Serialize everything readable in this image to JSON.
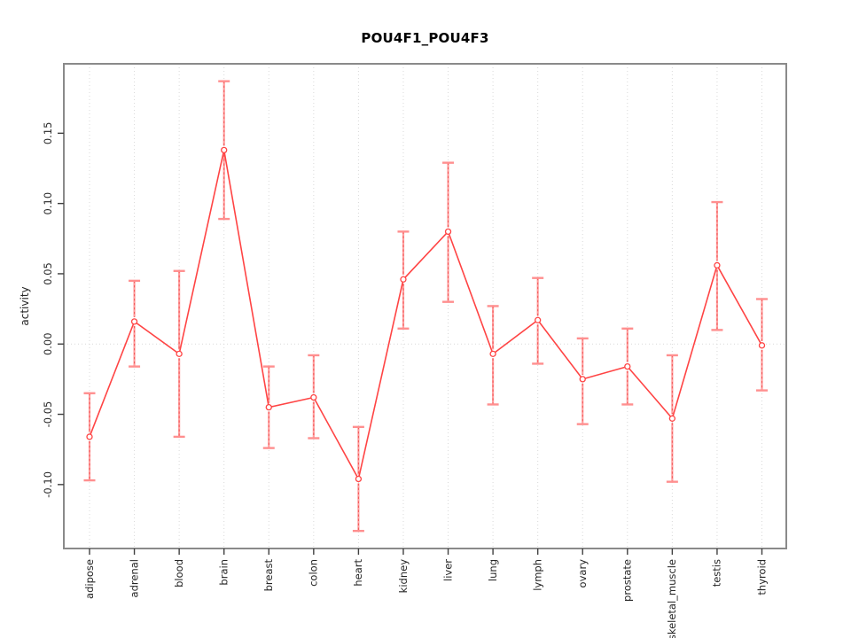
{
  "chart_data": {
    "type": "line",
    "title": "POU4F1_POU4F3",
    "xlabel": "",
    "ylabel": "activity",
    "categories": [
      "adipose",
      "adrenal",
      "blood",
      "brain",
      "breast",
      "colon",
      "heart",
      "kidney",
      "liver",
      "lung",
      "lymph",
      "ovary",
      "prostate",
      "skeletal_muscle",
      "testis",
      "thyroid"
    ],
    "series": [
      {
        "name": "activity",
        "values": [
          -0.066,
          0.016,
          -0.007,
          0.138,
          -0.045,
          -0.038,
          -0.096,
          0.046,
          0.08,
          -0.007,
          0.017,
          -0.025,
          -0.016,
          -0.053,
          0.056,
          -0.001
        ],
        "ci_low": [
          -0.097,
          -0.016,
          -0.066,
          0.089,
          -0.074,
          -0.067,
          -0.133,
          0.011,
          0.03,
          -0.043,
          -0.014,
          -0.057,
          -0.043,
          -0.098,
          0.01,
          -0.033
        ],
        "ci_high": [
          -0.035,
          0.045,
          0.052,
          0.187,
          -0.016,
          -0.008,
          -0.059,
          0.08,
          0.129,
          0.027,
          0.047,
          0.004,
          0.011,
          -0.008,
          0.101,
          0.032
        ]
      }
    ],
    "ylim": [
      -0.1455,
      0.1994
    ],
    "yticks": [
      -0.1,
      -0.05,
      0.0,
      0.05,
      0.1,
      0.15
    ],
    "grid": "vertical dotted line per category; horizontal dotted line at 0 only",
    "legend_position": "none",
    "marker": "open-circle",
    "colors": {
      "line": "#ff4444",
      "error_bar": "#ffa0a0",
      "error_bar_dash": "#f25555",
      "error_cap": "#ff8f8f",
      "grid": "#d9d9d9",
      "frame": "#8a8a8a",
      "tick": "#404040",
      "text": "#262626",
      "title": "#000000"
    }
  }
}
